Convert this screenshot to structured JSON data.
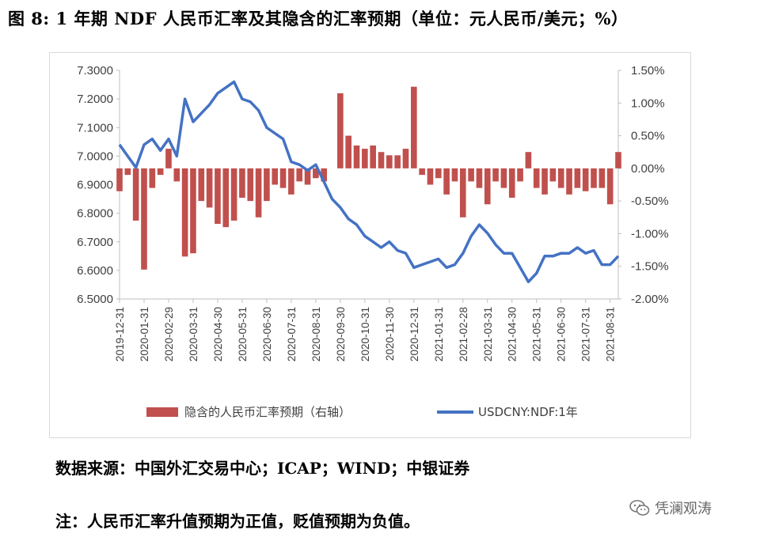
{
  "figure": {
    "title": "图 8: 1 年期 NDF 人民币汇率及其隐含的汇率预期（单位：元人民币/美元；%）",
    "source": "数据来源：中国外汇交易中心；ICAP；WIND；中银证券",
    "note": "注：人民币汇率升值预期为正值，贬值预期为负值。",
    "watermark": "凭澜观涛"
  },
  "colors": {
    "bar": "#c0504d",
    "line": "#4472c4",
    "axis": "#bfbfbf",
    "text": "#595959"
  },
  "chart_data": {
    "type": "bar+line",
    "series": [
      {
        "name": "隐含的人民币汇率预期（右轴）",
        "type": "bar",
        "axis": "right",
        "unit": "%",
        "x": [
          "2019-12-31",
          "2020-01-10",
          "2020-01-20",
          "2020-01-31",
          "2020-02-10",
          "2020-02-20",
          "2020-02-29",
          "2020-03-10",
          "2020-03-20",
          "2020-03-31",
          "2020-04-10",
          "2020-04-20",
          "2020-04-30",
          "2020-05-10",
          "2020-05-20",
          "2020-05-31",
          "2020-06-10",
          "2020-06-20",
          "2020-06-30",
          "2020-07-10",
          "2020-07-20",
          "2020-07-31",
          "2020-08-10",
          "2020-08-20",
          "2020-08-31",
          "2020-09-10",
          "2020-09-20",
          "2020-09-30",
          "2020-10-10",
          "2020-10-20",
          "2020-10-31",
          "2020-11-10",
          "2020-11-20",
          "2020-11-30",
          "2020-12-10",
          "2020-12-20",
          "2020-12-31",
          "2021-01-10",
          "2021-01-20",
          "2021-01-31",
          "2021-02-10",
          "2021-02-20",
          "2021-02-28",
          "2021-03-10",
          "2021-03-20",
          "2021-03-31",
          "2021-04-10",
          "2021-04-20",
          "2021-04-30",
          "2021-05-10",
          "2021-05-20",
          "2021-05-31",
          "2021-06-10",
          "2021-06-20",
          "2021-06-30",
          "2021-07-10",
          "2021-07-20",
          "2021-07-31",
          "2021-08-10",
          "2021-08-20",
          "2021-08-31",
          "2021-09-10"
        ],
        "values": [
          -0.35,
          -0.1,
          -0.8,
          -1.55,
          -0.3,
          -0.1,
          0.3,
          -0.2,
          -1.35,
          -1.3,
          -0.5,
          -0.6,
          -0.85,
          -0.9,
          -0.8,
          -0.45,
          -0.5,
          -0.75,
          -0.5,
          -0.25,
          -0.3,
          -0.4,
          -0.2,
          -0.25,
          -0.15,
          -0.2,
          0.0,
          1.15,
          0.5,
          0.35,
          0.3,
          0.35,
          0.25,
          0.2,
          0.2,
          0.3,
          1.25,
          -0.1,
          -0.25,
          -0.15,
          -0.4,
          -0.2,
          -0.75,
          -0.2,
          -0.3,
          -0.55,
          -0.2,
          -0.3,
          -0.45,
          -0.2,
          0.25,
          -0.3,
          -0.4,
          -0.2,
          -0.3,
          -0.4,
          -0.3,
          -0.35,
          -0.3,
          -0.3,
          -0.55,
          0.25
        ]
      },
      {
        "name": "USDCNY:NDF:1年",
        "type": "line",
        "axis": "left",
        "x": [
          "2019-12-31",
          "2020-01-10",
          "2020-01-20",
          "2020-01-31",
          "2020-02-10",
          "2020-02-20",
          "2020-02-29",
          "2020-03-10",
          "2020-03-20",
          "2020-03-31",
          "2020-04-10",
          "2020-04-20",
          "2020-04-30",
          "2020-05-10",
          "2020-05-20",
          "2020-05-31",
          "2020-06-10",
          "2020-06-20",
          "2020-06-30",
          "2020-07-10",
          "2020-07-20",
          "2020-07-31",
          "2020-08-10",
          "2020-08-20",
          "2020-08-31",
          "2020-09-10",
          "2020-09-20",
          "2020-09-30",
          "2020-10-10",
          "2020-10-20",
          "2020-10-31",
          "2020-11-10",
          "2020-11-20",
          "2020-11-30",
          "2020-12-10",
          "2020-12-20",
          "2020-12-31",
          "2021-01-10",
          "2021-01-20",
          "2021-01-31",
          "2021-02-10",
          "2021-02-20",
          "2021-02-28",
          "2021-03-10",
          "2021-03-20",
          "2021-03-31",
          "2021-04-10",
          "2021-04-20",
          "2021-04-30",
          "2021-05-10",
          "2021-05-20",
          "2021-05-31",
          "2021-06-10",
          "2021-06-20",
          "2021-06-30",
          "2021-07-10",
          "2021-07-20",
          "2021-07-31",
          "2021-08-10",
          "2021-08-20",
          "2021-08-31",
          "2021-09-10"
        ],
        "values": [
          7.04,
          7.0,
          6.96,
          7.04,
          7.06,
          7.02,
          7.06,
          7.0,
          7.2,
          7.12,
          7.15,
          7.18,
          7.22,
          7.24,
          7.26,
          7.2,
          7.19,
          7.16,
          7.1,
          7.08,
          7.06,
          6.98,
          6.97,
          6.95,
          6.97,
          6.91,
          6.85,
          6.82,
          6.78,
          6.76,
          6.72,
          6.7,
          6.68,
          6.7,
          6.67,
          6.66,
          6.61,
          6.62,
          6.63,
          6.64,
          6.61,
          6.62,
          6.66,
          6.72,
          6.76,
          6.73,
          6.69,
          6.66,
          6.66,
          6.61,
          6.56,
          6.59,
          6.65,
          6.65,
          6.66,
          6.66,
          6.68,
          6.66,
          6.67,
          6.62,
          6.62,
          6.65
        ]
      }
    ],
    "x_tick_labels": [
      "2019-12-31",
      "2020-01-31",
      "2020-02-29",
      "2020-03-31",
      "2020-04-30",
      "2020-05-31",
      "2020-06-30",
      "2020-07-31",
      "2020-08-31",
      "2020-09-30",
      "2020-10-31",
      "2020-11-30",
      "2020-12-31",
      "2021-01-31",
      "2021-02-28",
      "2021-03-31",
      "2021-04-30",
      "2021-05-31",
      "2021-06-30",
      "2021-07-31",
      "2021-08-31"
    ],
    "y_left_ticks": [
      "7.3000",
      "7.2000",
      "7.1000",
      "7.0000",
      "6.9000",
      "6.8000",
      "6.7000",
      "6.6000",
      "6.5000"
    ],
    "y_right_ticks": [
      "1.50%",
      "1.00%",
      "0.50%",
      "0.00%",
      "-0.50%",
      "-1.00%",
      "-1.50%",
      "-2.00%"
    ],
    "ylim_left": [
      6.5,
      7.3
    ],
    "ylim_right": [
      -2.0,
      1.5
    ],
    "legend_position": "bottom",
    "grid": false
  }
}
